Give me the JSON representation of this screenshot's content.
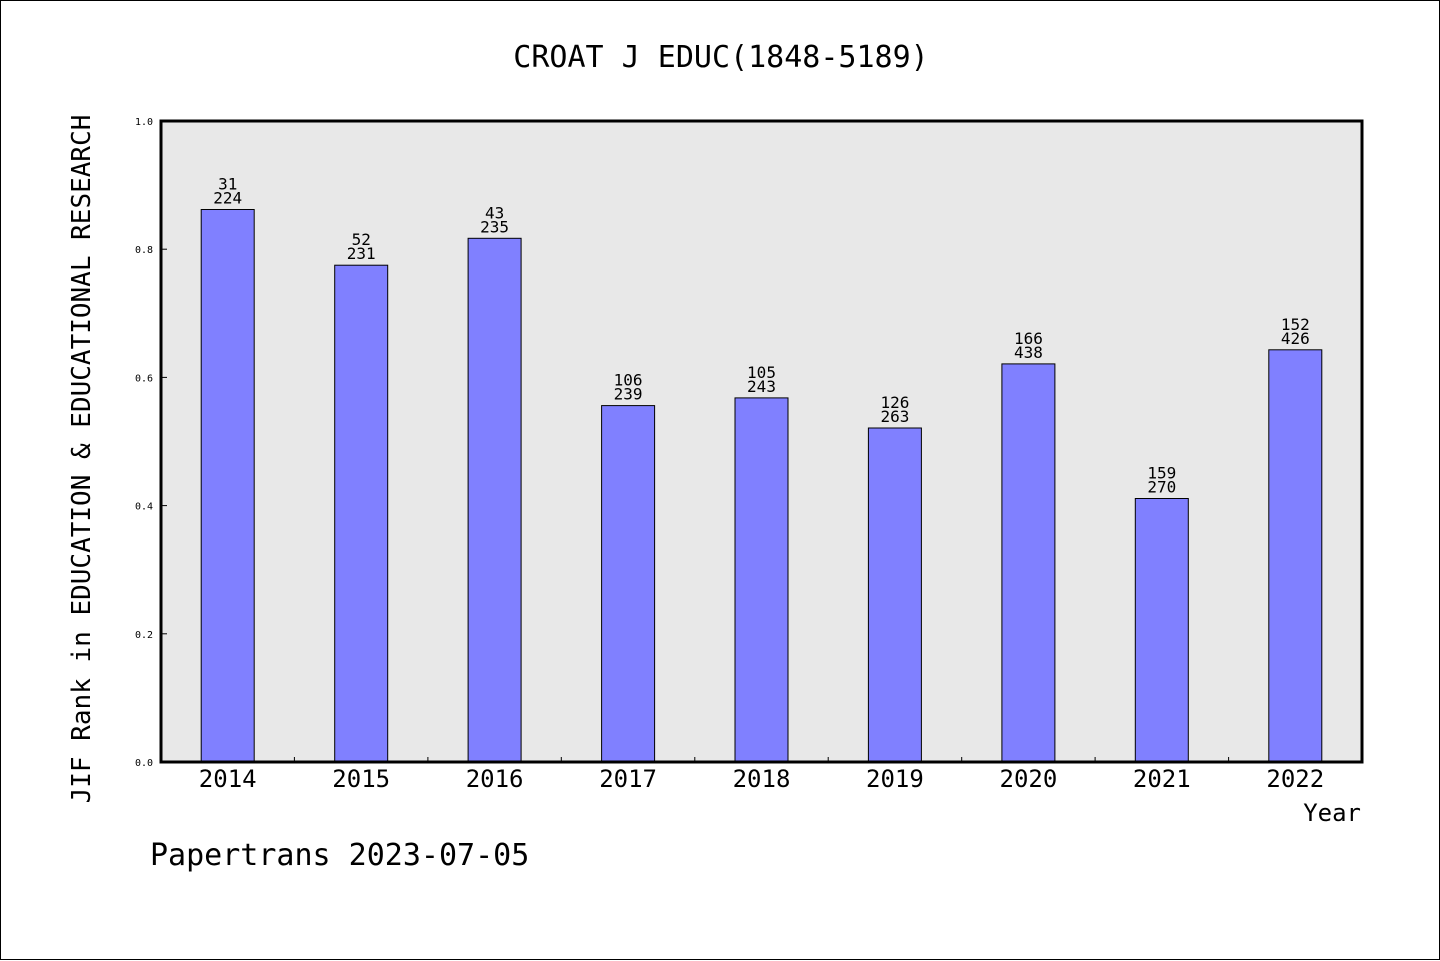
{
  "chart_data": {
    "type": "bar",
    "title": "CROAT J EDUC(1848-5189)",
    "xlabel": "Year",
    "ylabel": "JIF Rank in EDUCATION & EDUCATIONAL RESEARCH",
    "ylim": [
      0,
      1.0
    ],
    "yticks": [
      "0.0",
      "0.2",
      "0.4",
      "0.6",
      "0.8",
      "1.0"
    ],
    "ytick_values": [
      0.0,
      0.2,
      0.4,
      0.6,
      0.8,
      1.0
    ],
    "categories": [
      "2014",
      "2015",
      "2016",
      "2017",
      "2018",
      "2019",
      "2020",
      "2021",
      "2022"
    ],
    "values": [
      0.862,
      0.775,
      0.817,
      0.556,
      0.568,
      0.521,
      0.621,
      0.411,
      0.643
    ],
    "labels_top": [
      "31",
      "52",
      "43",
      "106",
      "105",
      "126",
      "166",
      "159",
      "152"
    ],
    "labels_bottom": [
      "224",
      "231",
      "235",
      "239",
      "243",
      "263",
      "438",
      "270",
      "426"
    ],
    "grid": false,
    "bar_color": "#8080ff",
    "plot_background": "#e8e8e8"
  },
  "footer": {
    "text": "Papertrans 2023-07-05"
  }
}
